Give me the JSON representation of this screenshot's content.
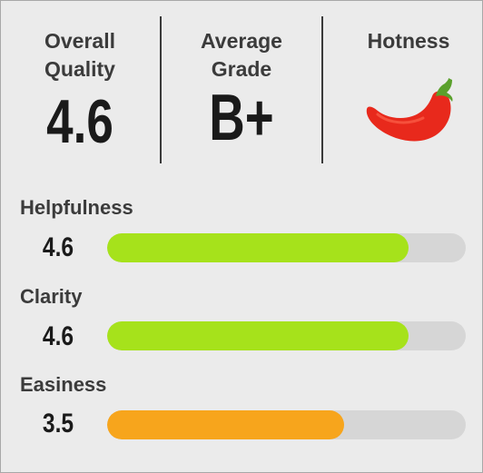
{
  "overall_quality": {
    "label_line1": "Overall",
    "label_line2": "Quality",
    "value": "4.6"
  },
  "average_grade": {
    "label_line1": "Average",
    "label_line2": "Grade",
    "value": "B+"
  },
  "hotness": {
    "label": "Hotness",
    "icon": "chili-pepper-icon",
    "colors": {
      "pepper": "#e8291c",
      "stem": "#5aa02c"
    }
  },
  "metrics": [
    {
      "label": "Helpfulness",
      "value": "4.6",
      "fraction": 0.84,
      "color": "#a6e21b"
    },
    {
      "label": "Clarity",
      "value": "4.6",
      "fraction": 0.84,
      "color": "#a6e21b"
    },
    {
      "label": "Easiness",
      "value": "3.5",
      "fraction": 0.66,
      "color": "#f7a51c"
    }
  ],
  "colors": {
    "background": "#ebebeb",
    "track": "#d6d6d6",
    "text": "#1a1a1a"
  }
}
